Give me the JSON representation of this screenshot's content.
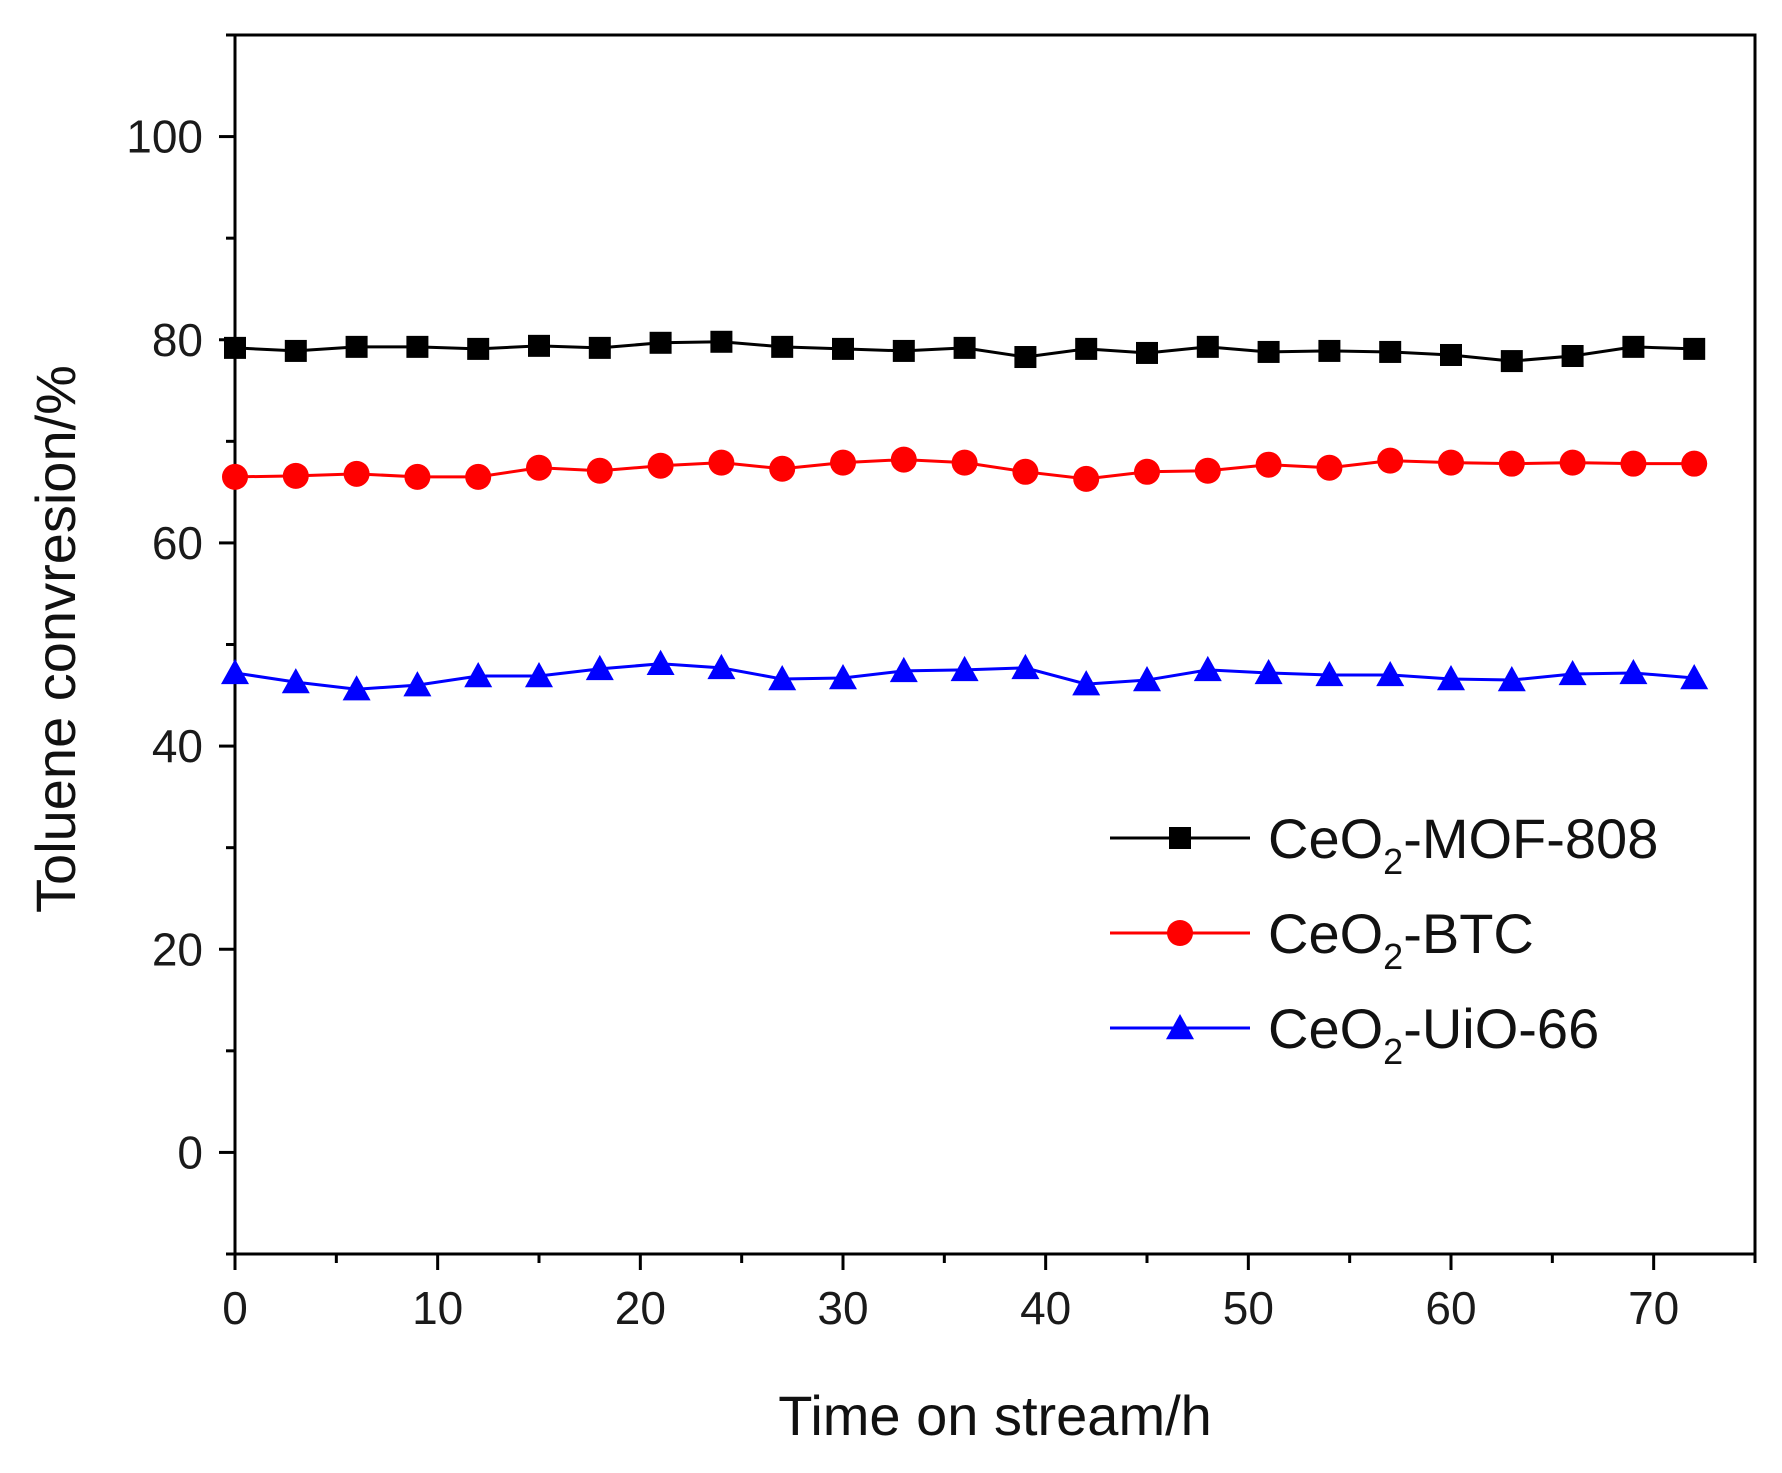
{
  "chart_data": {
    "type": "line",
    "xlabel": "Time on stream/h",
    "ylabel": "Toluene convresion/%",
    "xlim": [
      0,
      75
    ],
    "ylim": [
      -10,
      110
    ],
    "xticks": [
      0,
      10,
      20,
      30,
      40,
      50,
      60,
      70
    ],
    "yticks": [
      0,
      20,
      40,
      60,
      80,
      100
    ],
    "grid": false,
    "legend_position": "right-middle",
    "x": [
      0,
      3,
      6,
      9,
      12,
      15,
      18,
      21,
      24,
      27,
      30,
      33,
      36,
      39,
      42,
      45,
      48,
      51,
      54,
      57,
      60,
      63,
      66,
      69,
      72
    ],
    "series": [
      {
        "name_main": "CeO",
        "name_sub": "2",
        "name_tail": "-MOF-808",
        "color": "#000000",
        "marker": "square",
        "values": [
          79.2,
          78.9,
          79.3,
          79.3,
          79.1,
          79.4,
          79.2,
          79.7,
          79.8,
          79.3,
          79.1,
          78.9,
          79.2,
          78.3,
          79.1,
          78.7,
          79.3,
          78.8,
          78.9,
          78.8,
          78.5,
          77.9,
          78.4,
          79.3,
          79.1
        ]
      },
      {
        "name_main": "CeO",
        "name_sub": "2",
        "name_tail": "-BTC",
        "color": "#ff0000",
        "marker": "circle",
        "values": [
          66.5,
          66.6,
          66.8,
          66.5,
          66.5,
          67.4,
          67.1,
          67.6,
          67.9,
          67.3,
          67.9,
          68.2,
          67.9,
          67.0,
          66.3,
          67.0,
          67.1,
          67.7,
          67.4,
          68.1,
          67.9,
          67.8,
          67.9,
          67.8,
          67.8
        ]
      },
      {
        "name_main": "CeO",
        "name_sub": "2",
        "name_tail": "-UiO-66",
        "color": "#0000ff",
        "marker": "triangle",
        "values": [
          47.2,
          46.3,
          45.6,
          46.0,
          46.9,
          46.9,
          47.6,
          48.1,
          47.7,
          46.6,
          46.7,
          47.4,
          47.5,
          47.7,
          46.1,
          46.5,
          47.5,
          47.2,
          47.0,
          47.0,
          46.6,
          46.5,
          47.1,
          47.2,
          46.7
        ]
      }
    ]
  }
}
